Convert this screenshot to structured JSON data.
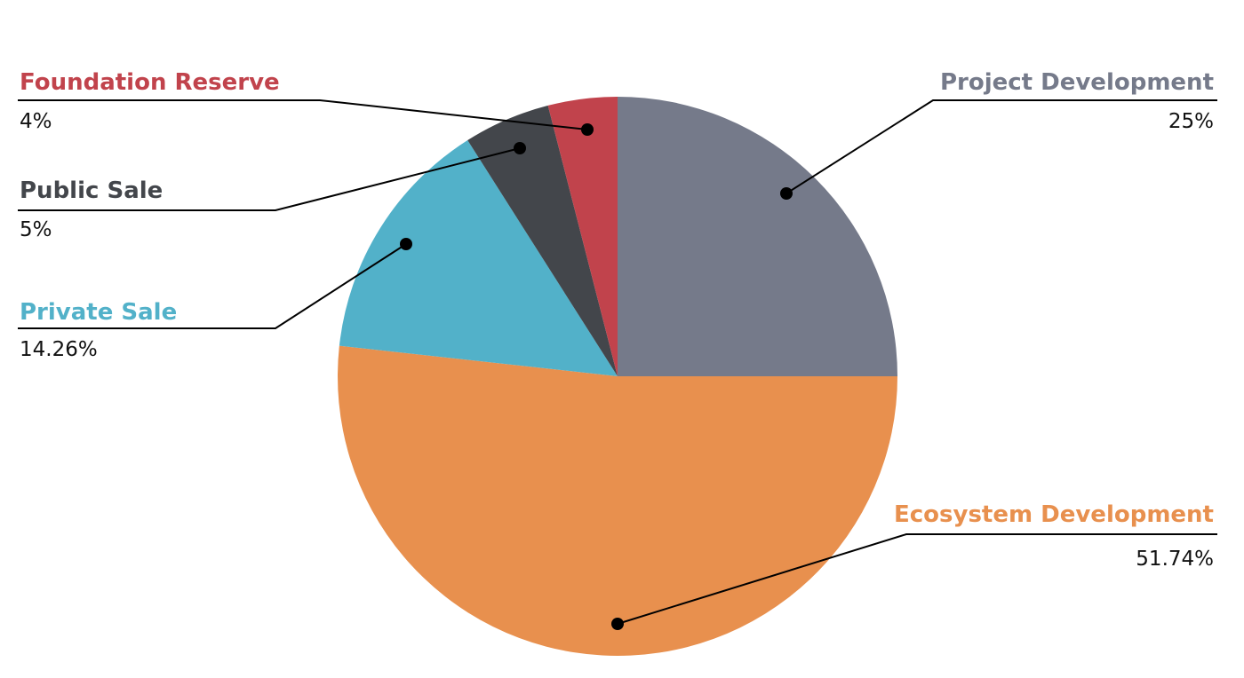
{
  "chart_data": {
    "type": "pie",
    "categories": [
      "Project Development",
      "Ecosystem Development",
      "Private Sale",
      "Public Sale",
      "Foundation Reserve"
    ],
    "values": [
      25,
      51.74,
      14.26,
      5,
      4
    ],
    "value_labels": [
      "25%",
      "51.74%",
      "14.26%",
      "5%",
      "4%"
    ],
    "colors": [
      "#757a8a",
      "#e8904e",
      "#52b1c9",
      "#43464b",
      "#c1434c"
    ]
  }
}
